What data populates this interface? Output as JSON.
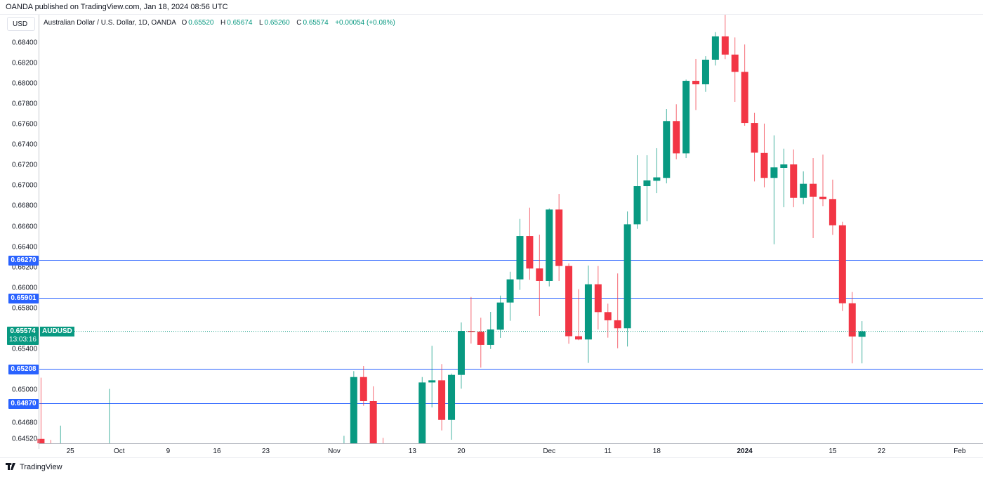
{
  "header": {
    "published": "OANDA published on TradingView.com, Jan 18, 2024 08:56 UTC",
    "currency": "USD",
    "symbol_desc": "Australian Dollar / U.S. Dollar, 1D, OANDA",
    "o_label": "O",
    "o": "0.65520",
    "h_label": "H",
    "h": "0.65674",
    "l_label": "L",
    "l": "0.65260",
    "c_label": "C",
    "c": "0.65574",
    "change": "+0.00054 (+0.08%)"
  },
  "footer": {
    "brand": "TradingView",
    "logo_icon": "tradingview-logo-icon"
  },
  "colors": {
    "up": "#089981",
    "down": "#f23645",
    "level": "#2962ff",
    "last": "#089981"
  },
  "price_badge": {
    "price": "0.65574",
    "countdown": "13:03:16",
    "symbol": "AUDUSD"
  },
  "chart_data": {
    "type": "candlestick",
    "title": "Australian Dollar / U.S. Dollar, 1D, OANDA",
    "ylim": [
      0.6452,
      0.6865
    ],
    "yticks": [
      "0.68400",
      "0.68200",
      "0.68000",
      "0.67800",
      "0.67600",
      "0.67400",
      "0.67200",
      "0.67000",
      "0.66800",
      "0.66600",
      "0.66400",
      "0.66200",
      "0.66000",
      "0.65800",
      "0.65400",
      "0.65000",
      "0.64680",
      "0.64520"
    ],
    "xticks": [
      {
        "label": "25",
        "date": "2023-09-25"
      },
      {
        "label": "Oct",
        "date": "2023-10-02"
      },
      {
        "label": "9",
        "date": "2023-10-09"
      },
      {
        "label": "16",
        "date": "2023-10-16"
      },
      {
        "label": "23",
        "date": "2023-10-23"
      },
      {
        "label": "Nov",
        "date": "2023-11-01"
      },
      {
        "label": "13",
        "date": "2023-11-13"
      },
      {
        "label": "20",
        "date": "2023-11-20"
      },
      {
        "label": "Dec",
        "date": "2023-12-01"
      },
      {
        "label": "11",
        "date": "2023-12-11"
      },
      {
        "label": "18",
        "date": "2023-12-18"
      },
      {
        "label": "2024",
        "date": "2024-01-02",
        "bold": true
      },
      {
        "label": "15",
        "date": "2024-01-15"
      },
      {
        "label": "22",
        "date": "2024-01-22"
      },
      {
        "label": "Feb",
        "date": "2024-02-01"
      }
    ],
    "levels": [
      {
        "price": "0.66270"
      },
      {
        "price": "0.65901"
      },
      {
        "price": "0.65208"
      },
      {
        "price": "0.64870"
      }
    ],
    "last_price": 0.65574,
    "candles": [
      {
        "date": "2023-09-20",
        "o": 0.6452,
        "h": 0.6512,
        "l": 0.643,
        "c": 0.644
      },
      {
        "date": "2023-09-21",
        "o": 0.644,
        "h": 0.6451,
        "l": 0.642,
        "c": 0.643
      },
      {
        "date": "2023-09-22",
        "o": 0.642,
        "h": 0.6465,
        "l": 0.641,
        "c": 0.643
      },
      {
        "date": "2023-09-29",
        "o": 0.642,
        "h": 0.6501,
        "l": 0.641,
        "c": 0.643
      },
      {
        "date": "2023-11-02",
        "o": 0.638,
        "h": 0.6455,
        "l": 0.637,
        "c": 0.644
      },
      {
        "date": "2023-11-03",
        "o": 0.644,
        "h": 0.65184,
        "l": 0.643,
        "c": 0.65126
      },
      {
        "date": "2023-11-06",
        "o": 0.65126,
        "h": 0.65234,
        "l": 0.64844,
        "c": 0.6489
      },
      {
        "date": "2023-11-07",
        "o": 0.6489,
        "h": 0.65035,
        "l": 0.641,
        "c": 0.642
      },
      {
        "date": "2023-11-08",
        "o": 0.644,
        "h": 0.6453,
        "l": 0.64,
        "c": 0.641
      },
      {
        "date": "2023-11-14",
        "o": 0.6435,
        "h": 0.65126,
        "l": 0.6425,
        "c": 0.65073
      },
      {
        "date": "2023-11-15",
        "o": 0.65073,
        "h": 0.65432,
        "l": 0.64828,
        "c": 0.65094
      },
      {
        "date": "2023-11-16",
        "o": 0.65094,
        "h": 0.65253,
        "l": 0.64603,
        "c": 0.64706
      },
      {
        "date": "2023-11-17",
        "o": 0.64706,
        "h": 0.6516,
        "l": 0.64512,
        "c": 0.65147
      },
      {
        "date": "2023-11-20",
        "o": 0.65147,
        "h": 0.65661,
        "l": 0.65012,
        "c": 0.65578
      },
      {
        "date": "2023-11-21",
        "o": 0.65578,
        "h": 0.6591,
        "l": 0.65454,
        "c": 0.65569
      },
      {
        "date": "2023-11-22",
        "o": 0.6557,
        "h": 0.65707,
        "l": 0.65218,
        "c": 0.65441
      },
      {
        "date": "2023-11-23",
        "o": 0.65441,
        "h": 0.65764,
        "l": 0.65401,
        "c": 0.65592
      },
      {
        "date": "2023-11-24",
        "o": 0.6559,
        "h": 0.65924,
        "l": 0.6551,
        "c": 0.65856
      },
      {
        "date": "2023-11-27",
        "o": 0.65856,
        "h": 0.66158,
        "l": 0.65677,
        "c": 0.66083
      },
      {
        "date": "2023-11-28",
        "o": 0.66083,
        "h": 0.66675,
        "l": 0.6598,
        "c": 0.66507
      },
      {
        "date": "2023-11-29",
        "o": 0.66507,
        "h": 0.66785,
        "l": 0.66079,
        "c": 0.66189
      },
      {
        "date": "2023-11-30",
        "o": 0.6619,
        "h": 0.66521,
        "l": 0.65723,
        "c": 0.66067
      },
      {
        "date": "2023-12-01",
        "o": 0.66067,
        "h": 0.66778,
        "l": 0.66014,
        "c": 0.66767
      },
      {
        "date": "2023-12-04",
        "o": 0.66767,
        "h": 0.6692,
        "l": 0.66067,
        "c": 0.66214
      },
      {
        "date": "2023-12-05",
        "o": 0.66214,
        "h": 0.66239,
        "l": 0.65452,
        "c": 0.65526
      },
      {
        "date": "2023-12-06",
        "o": 0.65526,
        "h": 0.65987,
        "l": 0.65487,
        "c": 0.65494
      },
      {
        "date": "2023-12-07",
        "o": 0.65494,
        "h": 0.66218,
        "l": 0.65264,
        "c": 0.66035
      },
      {
        "date": "2023-12-08",
        "o": 0.66035,
        "h": 0.66214,
        "l": 0.65592,
        "c": 0.65762
      },
      {
        "date": "2023-12-11",
        "o": 0.65762,
        "h": 0.65845,
        "l": 0.65512,
        "c": 0.65682
      },
      {
        "date": "2023-12-12",
        "o": 0.65682,
        "h": 0.66141,
        "l": 0.65408,
        "c": 0.65604
      },
      {
        "date": "2023-12-13",
        "o": 0.65604,
        "h": 0.66748,
        "l": 0.65425,
        "c": 0.66622
      },
      {
        "date": "2023-12-14",
        "o": 0.66622,
        "h": 0.67299,
        "l": 0.66578,
        "c": 0.66996
      },
      {
        "date": "2023-12-15",
        "o": 0.66996,
        "h": 0.67299,
        "l": 0.66652,
        "c": 0.67053
      },
      {
        "date": "2023-12-18",
        "o": 0.67049,
        "h": 0.67368,
        "l": 0.66927,
        "c": 0.67082
      },
      {
        "date": "2023-12-19",
        "o": 0.67077,
        "h": 0.67753,
        "l": 0.67024,
        "c": 0.67634
      },
      {
        "date": "2023-12-20",
        "o": 0.67634,
        "h": 0.67799,
        "l": 0.6726,
        "c": 0.67317
      },
      {
        "date": "2023-12-21",
        "o": 0.67317,
        "h": 0.6804,
        "l": 0.67271,
        "c": 0.68028
      },
      {
        "date": "2023-12-22",
        "o": 0.68028,
        "h": 0.68242,
        "l": 0.67741,
        "c": 0.67994
      },
      {
        "date": "2023-12-26",
        "o": 0.67994,
        "h": 0.68269,
        "l": 0.6792,
        "c": 0.68235
      },
      {
        "date": "2023-12-27",
        "o": 0.68235,
        "h": 0.68505,
        "l": 0.68178,
        "c": 0.68464
      },
      {
        "date": "2023-12-28",
        "o": 0.68464,
        "h": 0.68675,
        "l": 0.6824,
        "c": 0.68285
      },
      {
        "date": "2023-12-29",
        "o": 0.68285,
        "h": 0.68453,
        "l": 0.67822,
        "c": 0.68116
      },
      {
        "date": "2024-01-02",
        "o": 0.68116,
        "h": 0.68384,
        "l": 0.67588,
        "c": 0.67615
      },
      {
        "date": "2024-01-03",
        "o": 0.67615,
        "h": 0.67714,
        "l": 0.67042,
        "c": 0.67324
      },
      {
        "date": "2024-01-04",
        "o": 0.67321,
        "h": 0.67609,
        "l": 0.66985,
        "c": 0.67077
      },
      {
        "date": "2024-01-05",
        "o": 0.67077,
        "h": 0.67494,
        "l": 0.66427,
        "c": 0.6718
      },
      {
        "date": "2024-01-08",
        "o": 0.67175,
        "h": 0.67363,
        "l": 0.6679,
        "c": 0.67209
      },
      {
        "date": "2024-01-09",
        "o": 0.67209,
        "h": 0.67356,
        "l": 0.6679,
        "c": 0.66881
      },
      {
        "date": "2024-01-10",
        "o": 0.66881,
        "h": 0.67141,
        "l": 0.6682,
        "c": 0.67019
      },
      {
        "date": "2024-01-11",
        "o": 0.67019,
        "h": 0.67271,
        "l": 0.66487,
        "c": 0.66893
      },
      {
        "date": "2024-01-12",
        "o": 0.66893,
        "h": 0.67306,
        "l": 0.66801,
        "c": 0.6687
      },
      {
        "date": "2024-01-15",
        "o": 0.6687,
        "h": 0.6706,
        "l": 0.66519,
        "c": 0.66613
      },
      {
        "date": "2024-01-16",
        "o": 0.66613,
        "h": 0.66647,
        "l": 0.65773,
        "c": 0.65849
      },
      {
        "date": "2024-01-17",
        "o": 0.65849,
        "h": 0.65959,
        "l": 0.6526,
        "c": 0.65523
      },
      {
        "date": "2024-01-18",
        "o": 0.6552,
        "h": 0.65674,
        "l": 0.6526,
        "c": 0.65574
      }
    ]
  }
}
